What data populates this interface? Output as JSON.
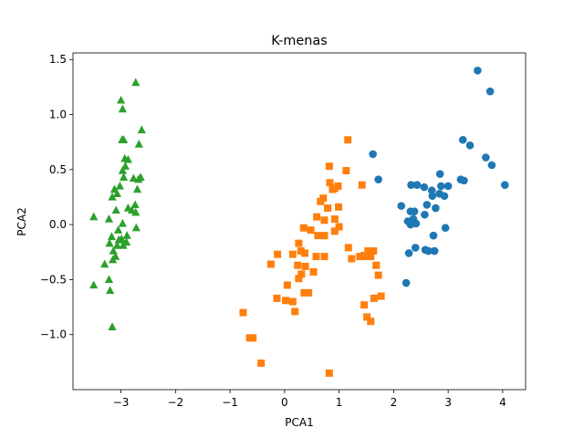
{
  "chart_data": {
    "type": "scatter",
    "title": "K-menas",
    "xlabel": "PCA1",
    "ylabel": "PCA2",
    "xlim": [
      -3.88,
      4.42
    ],
    "ylim": [
      -1.5,
      1.56
    ],
    "xticks": [
      -3,
      -2,
      -1,
      0,
      1,
      2,
      3,
      4
    ],
    "xtick_labels": [
      "−3",
      "−2",
      "−1",
      "0",
      "1",
      "2",
      "3",
      "4"
    ],
    "yticks": [
      -1.0,
      -0.5,
      0.0,
      0.5,
      1.0,
      1.5
    ],
    "ytick_labels": [
      "−1.0",
      "−0.5",
      "0.0",
      "0.5",
      "1.0",
      "1.5"
    ],
    "grid": false,
    "series": [
      {
        "marker": "triangle",
        "color": "#2ca02c",
        "points": [
          [
            -2.73,
            1.29
          ],
          [
            -3.0,
            1.13
          ],
          [
            -2.97,
            1.05
          ],
          [
            -2.62,
            0.86
          ],
          [
            -2.98,
            0.77
          ],
          [
            -2.95,
            0.77
          ],
          [
            -2.67,
            0.73
          ],
          [
            -2.93,
            0.6
          ],
          [
            -2.87,
            0.59
          ],
          [
            -2.92,
            0.53
          ],
          [
            -2.97,
            0.49
          ],
          [
            -2.77,
            0.42
          ],
          [
            -2.68,
            0.41
          ],
          [
            -2.64,
            0.43
          ],
          [
            -2.95,
            0.43
          ],
          [
            -3.02,
            0.35
          ],
          [
            -3.12,
            0.32
          ],
          [
            -3.07,
            0.28
          ],
          [
            -3.16,
            0.25
          ],
          [
            -2.7,
            0.32
          ],
          [
            -2.74,
            0.18
          ],
          [
            -2.87,
            0.15
          ],
          [
            -3.09,
            0.13
          ],
          [
            -2.8,
            0.13
          ],
          [
            -2.73,
            0.11
          ],
          [
            -3.5,
            0.07
          ],
          [
            -3.22,
            0.05
          ],
          [
            -2.97,
            0.01
          ],
          [
            -2.72,
            -0.03
          ],
          [
            -3.05,
            -0.05
          ],
          [
            -2.89,
            -0.1
          ],
          [
            -3.17,
            -0.11
          ],
          [
            -3.04,
            -0.14
          ],
          [
            -2.99,
            -0.13
          ],
          [
            -3.21,
            -0.17
          ],
          [
            -2.9,
            -0.16
          ],
          [
            -3.07,
            -0.19
          ],
          [
            -2.96,
            -0.19
          ],
          [
            -3.14,
            -0.24
          ],
          [
            -3.1,
            -0.29
          ],
          [
            -3.3,
            -0.36
          ],
          [
            -3.15,
            -0.32
          ],
          [
            -3.22,
            -0.5
          ],
          [
            -3.5,
            -0.55
          ],
          [
            -3.2,
            -0.6
          ],
          [
            -3.16,
            -0.93
          ]
        ]
      },
      {
        "marker": "square",
        "color": "#ff7f0e",
        "points": [
          [
            1.16,
            0.77
          ],
          [
            0.82,
            0.53
          ],
          [
            1.13,
            0.49
          ],
          [
            0.83,
            0.38
          ],
          [
            0.88,
            0.32
          ],
          [
            0.98,
            0.35
          ],
          [
            0.92,
            0.33
          ],
          [
            1.42,
            0.36
          ],
          [
            0.71,
            0.24
          ],
          [
            0.66,
            0.21
          ],
          [
            0.99,
            0.16
          ],
          [
            0.79,
            0.15
          ],
          [
            0.59,
            0.07
          ],
          [
            0.92,
            0.05
          ],
          [
            0.73,
            0.04
          ],
          [
            0.35,
            -0.03
          ],
          [
            0.48,
            -0.05
          ],
          [
            1.0,
            -0.02
          ],
          [
            0.92,
            -0.06
          ],
          [
            0.61,
            -0.1
          ],
          [
            0.73,
            -0.1
          ],
          [
            1.17,
            -0.21
          ],
          [
            0.26,
            -0.17
          ],
          [
            0.3,
            -0.24
          ],
          [
            0.15,
            -0.27
          ],
          [
            -0.13,
            -0.27
          ],
          [
            0.37,
            -0.26
          ],
          [
            0.58,
            -0.29
          ],
          [
            0.73,
            -0.29
          ],
          [
            1.23,
            -0.31
          ],
          [
            1.46,
            -0.28
          ],
          [
            1.53,
            -0.24
          ],
          [
            1.63,
            -0.24
          ],
          [
            1.58,
            -0.29
          ],
          [
            1.38,
            -0.29
          ],
          [
            1.48,
            -0.29
          ],
          [
            1.68,
            -0.37
          ],
          [
            -0.25,
            -0.36
          ],
          [
            0.24,
            -0.37
          ],
          [
            0.38,
            -0.38
          ],
          [
            0.53,
            -0.43
          ],
          [
            0.31,
            -0.45
          ],
          [
            0.26,
            -0.49
          ],
          [
            1.72,
            -0.46
          ],
          [
            0.05,
            -0.55
          ],
          [
            0.36,
            -0.62
          ],
          [
            0.44,
            -0.62
          ],
          [
            1.64,
            -0.67
          ],
          [
            1.77,
            -0.65
          ],
          [
            -0.14,
            -0.67
          ],
          [
            0.02,
            -0.69
          ],
          [
            0.15,
            -0.7
          ],
          [
            1.46,
            -0.73
          ],
          [
            0.19,
            -0.79
          ],
          [
            -0.76,
            -0.8
          ],
          [
            1.51,
            -0.84
          ],
          [
            1.58,
            -0.88
          ],
          [
            -0.64,
            -1.03
          ],
          [
            -0.58,
            -1.03
          ],
          [
            -0.43,
            -1.26
          ],
          [
            0.82,
            -1.35
          ]
        ]
      },
      {
        "marker": "circle",
        "color": "#1f77b4",
        "points": [
          [
            3.54,
            1.4
          ],
          [
            3.77,
            1.21
          ],
          [
            3.4,
            0.72
          ],
          [
            3.27,
            0.77
          ],
          [
            3.69,
            0.61
          ],
          [
            3.8,
            0.54
          ],
          [
            1.62,
            0.64
          ],
          [
            1.72,
            0.41
          ],
          [
            3.23,
            0.41
          ],
          [
            3.29,
            0.4
          ],
          [
            4.04,
            0.36
          ],
          [
            2.85,
            0.46
          ],
          [
            2.43,
            0.36
          ],
          [
            2.32,
            0.36
          ],
          [
            2.56,
            0.34
          ],
          [
            2.7,
            0.31
          ],
          [
            2.87,
            0.35
          ],
          [
            3.0,
            0.35
          ],
          [
            2.84,
            0.28
          ],
          [
            2.93,
            0.26
          ],
          [
            2.71,
            0.26
          ],
          [
            2.61,
            0.18
          ],
          [
            2.14,
            0.17
          ],
          [
            2.77,
            0.15
          ],
          [
            2.38,
            0.12
          ],
          [
            2.31,
            0.12
          ],
          [
            2.57,
            0.09
          ],
          [
            2.36,
            0.05
          ],
          [
            2.26,
            0.03
          ],
          [
            2.31,
            0.0
          ],
          [
            2.41,
            0.01
          ],
          [
            2.95,
            -0.03
          ],
          [
            2.73,
            -0.1
          ],
          [
            2.4,
            -0.21
          ],
          [
            2.58,
            -0.23
          ],
          [
            2.64,
            -0.24
          ],
          [
            2.28,
            -0.26
          ],
          [
            2.75,
            -0.24
          ],
          [
            2.23,
            -0.53
          ]
        ]
      }
    ]
  }
}
